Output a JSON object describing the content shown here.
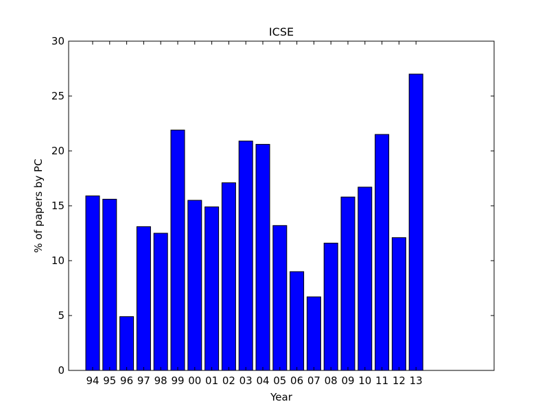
{
  "chart_data": {
    "type": "bar",
    "title": "ICSE",
    "xlabel": "Year",
    "ylabel": "% of papers by PC",
    "categories": [
      "94",
      "95",
      "96",
      "97",
      "98",
      "99",
      "00",
      "01",
      "02",
      "03",
      "04",
      "05",
      "06",
      "07",
      "08",
      "09",
      "10",
      "11",
      "12",
      "13"
    ],
    "values": [
      15.9,
      15.6,
      4.9,
      13.1,
      12.5,
      21.9,
      15.5,
      14.9,
      17.1,
      20.9,
      20.6,
      13.2,
      9.0,
      6.7,
      11.6,
      15.8,
      16.7,
      21.5,
      12.1,
      27.0
    ],
    "ylim": [
      0,
      30
    ],
    "yticks": [
      0,
      5,
      10,
      15,
      20,
      25,
      30
    ],
    "grid": false,
    "colors": {
      "bar_fill": "#0000ff",
      "bar_edge": "#000000",
      "axes": "#000000",
      "background": "#ffffff"
    }
  }
}
